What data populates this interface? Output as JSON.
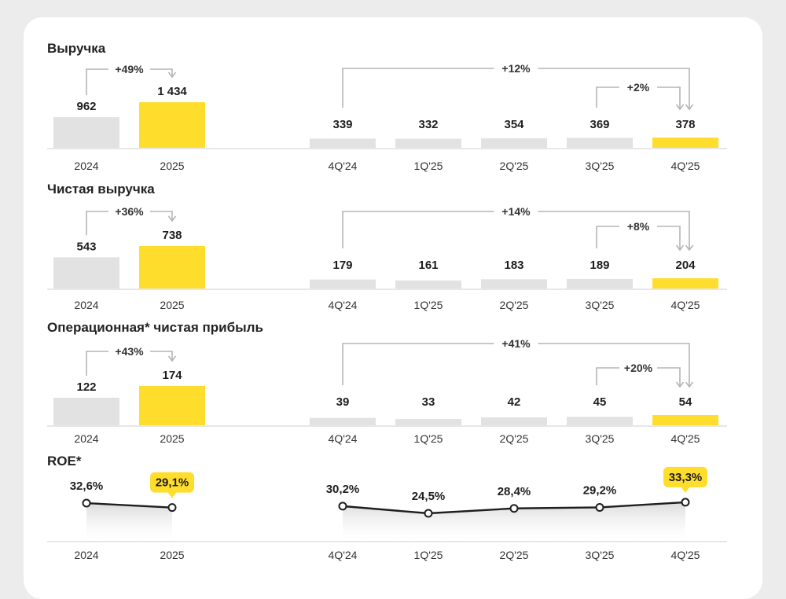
{
  "colors": {
    "highlight": "#FFDD2D",
    "base": "#E2E2E2",
    "bracket": "#B5B5B5",
    "line": "#1E1E1E",
    "background": "#ECECEC",
    "card": "#FFFFFF"
  },
  "chart_data": [
    {
      "type": "bar",
      "title": "Выручка",
      "annual": {
        "categories": [
          "2024",
          "2025"
        ],
        "labels": [
          "962",
          "1 434"
        ],
        "values": [
          962,
          1434
        ],
        "highlight": [
          1
        ],
        "change": "+49%"
      },
      "quarterly": {
        "categories": [
          "4Q'24",
          "1Q'25",
          "2Q'25",
          "3Q'25",
          "4Q'25"
        ],
        "labels": [
          "339",
          "332",
          "354",
          "369",
          "378"
        ],
        "values": [
          339,
          332,
          354,
          369,
          378
        ],
        "highlight": [
          4
        ],
        "change_long": "+12%",
        "change_short": "+2%"
      }
    },
    {
      "type": "bar",
      "title": "Чистая выручка",
      "annual": {
        "categories": [
          "2024",
          "2025"
        ],
        "labels": [
          "543",
          "738"
        ],
        "values": [
          543,
          738
        ],
        "highlight": [
          1
        ],
        "change": "+36%"
      },
      "quarterly": {
        "categories": [
          "4Q'24",
          "1Q'25",
          "2Q'25",
          "3Q'25",
          "4Q'25"
        ],
        "labels": [
          "179",
          "161",
          "183",
          "189",
          "204"
        ],
        "values": [
          179,
          161,
          183,
          189,
          204
        ],
        "highlight": [
          4
        ],
        "change_long": "+14%",
        "change_short": "+8%"
      }
    },
    {
      "type": "bar",
      "title": "Операционная* чистая прибыль",
      "annual": {
        "categories": [
          "2024",
          "2025"
        ],
        "labels": [
          "122",
          "174"
        ],
        "values": [
          122,
          174
        ],
        "highlight": [
          1
        ],
        "change": "+43%"
      },
      "quarterly": {
        "categories": [
          "4Q'24",
          "1Q'25",
          "2Q'25",
          "3Q'25",
          "4Q'25"
        ],
        "labels": [
          "39",
          "33",
          "42",
          "45",
          "54"
        ],
        "values": [
          39,
          33,
          42,
          45,
          54
        ],
        "highlight": [
          4
        ],
        "change_long": "+41%",
        "change_short": "+20%"
      }
    },
    {
      "type": "line",
      "title": "ROE*",
      "annual": {
        "categories": [
          "2024",
          "2025"
        ],
        "labels": [
          "32,6%",
          "29,1%"
        ],
        "values": [
          32.6,
          29.1
        ],
        "highlight": [
          1
        ]
      },
      "quarterly": {
        "categories": [
          "4Q'24",
          "1Q'25",
          "2Q'25",
          "3Q'25",
          "4Q'25"
        ],
        "labels": [
          "30,2%",
          "24,5%",
          "28,4%",
          "29,2%",
          "33,3%"
        ],
        "values": [
          30.2,
          24.5,
          28.4,
          29.2,
          33.3
        ],
        "highlight": [
          4
        ]
      }
    }
  ]
}
